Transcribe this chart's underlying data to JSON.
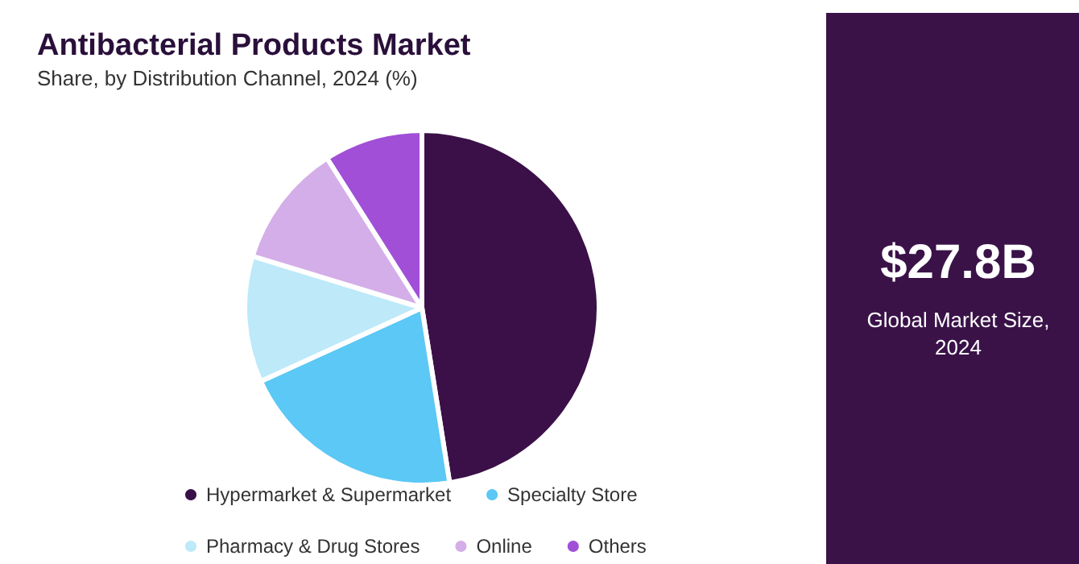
{
  "chart_data": {
    "type": "pie",
    "title": "Antibacterial Products Market",
    "subtitle": "Share, by Distribution Channel, 2024 (%)",
    "categories": [
      "Hypermarket & Supermarket",
      "Specialty Store",
      "Pharmacy & Drug Stores",
      "Online",
      "Others"
    ],
    "values": [
      47.5,
      20.7,
      11.5,
      11.3,
      9.0
    ],
    "colors": [
      "#3b1048",
      "#5bc8f5",
      "#bde9f9",
      "#d4aee8",
      "#a04fd6"
    ],
    "legend": "bottom",
    "annotations": [
      "$27.8B",
      "Global Market Size, 2024"
    ]
  }
}
